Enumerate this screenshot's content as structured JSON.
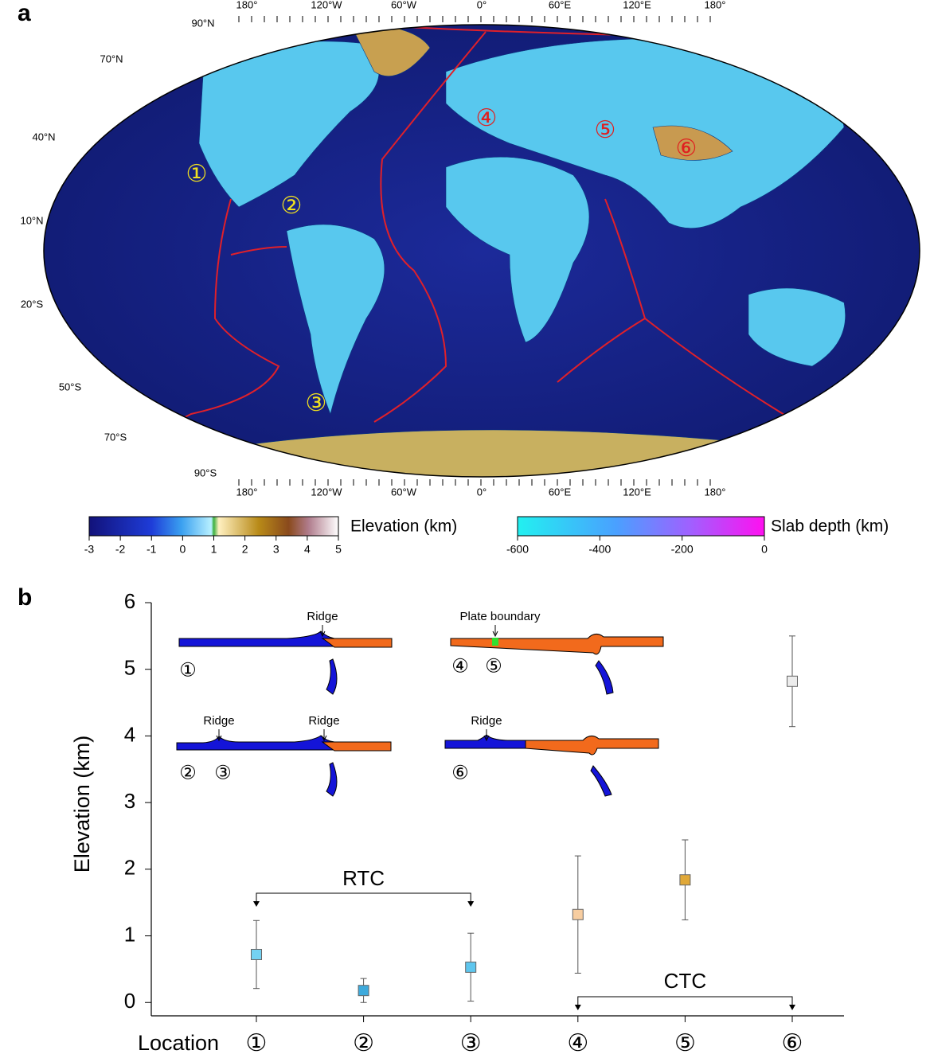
{
  "panel_a": {
    "label": "a",
    "lat_labels": [
      "90°N",
      "70°N",
      "40°N",
      "10°N",
      "20°S",
      "50°S",
      "70°S",
      "90°S"
    ],
    "lon_labels": [
      "180°",
      "120°W",
      "60°W",
      "0°",
      "60°E",
      "120°E",
      "180°"
    ],
    "locations": [
      "①",
      "②",
      "③",
      "④",
      "⑤",
      "⑥"
    ],
    "colorbars": [
      {
        "title": "Elevation (km)",
        "lim": [
          -3,
          5
        ],
        "ticks": [
          -3,
          -2,
          -1,
          0,
          1,
          2,
          3,
          4,
          5
        ]
      },
      {
        "title": "Slab depth (km)",
        "lim": [
          -600,
          0
        ],
        "ticks": [
          -600,
          -400,
          -200,
          0
        ]
      }
    ]
  },
  "chart_data": {
    "type": "errorbar",
    "panel_label": "b",
    "y_label": "Elevation (km)",
    "x_label": "Location",
    "categories": [
      "①",
      "②",
      "③",
      "④",
      "⑤",
      "⑥"
    ],
    "values": [
      0.72,
      0.18,
      0.53,
      1.32,
      1.84,
      4.82
    ],
    "errors": [
      0.51,
      0.18,
      0.51,
      0.88,
      0.6,
      0.68
    ],
    "colors": [
      "#74d2f2",
      "#3eaadc",
      "#5ec6ee",
      "#f7cda0",
      "#e0a838",
      "#ececec"
    ],
    "ylim": [
      -0.2,
      6
    ],
    "yticks": [
      0,
      1,
      2,
      3,
      4,
      5,
      6
    ],
    "annotations": [
      "RTC",
      "CTC"
    ],
    "insets": [
      {
        "labels": [
          "Ridge"
        ],
        "locations": [
          "①"
        ]
      },
      {
        "labels": [
          "Plate boundary"
        ],
        "locations": [
          "④",
          "⑤"
        ]
      },
      {
        "labels": [
          "Ridge",
          "Ridge"
        ],
        "locations": [
          "②",
          "③"
        ]
      },
      {
        "labels": [
          "Ridge"
        ],
        "locations": [
          "⑥"
        ]
      }
    ]
  }
}
